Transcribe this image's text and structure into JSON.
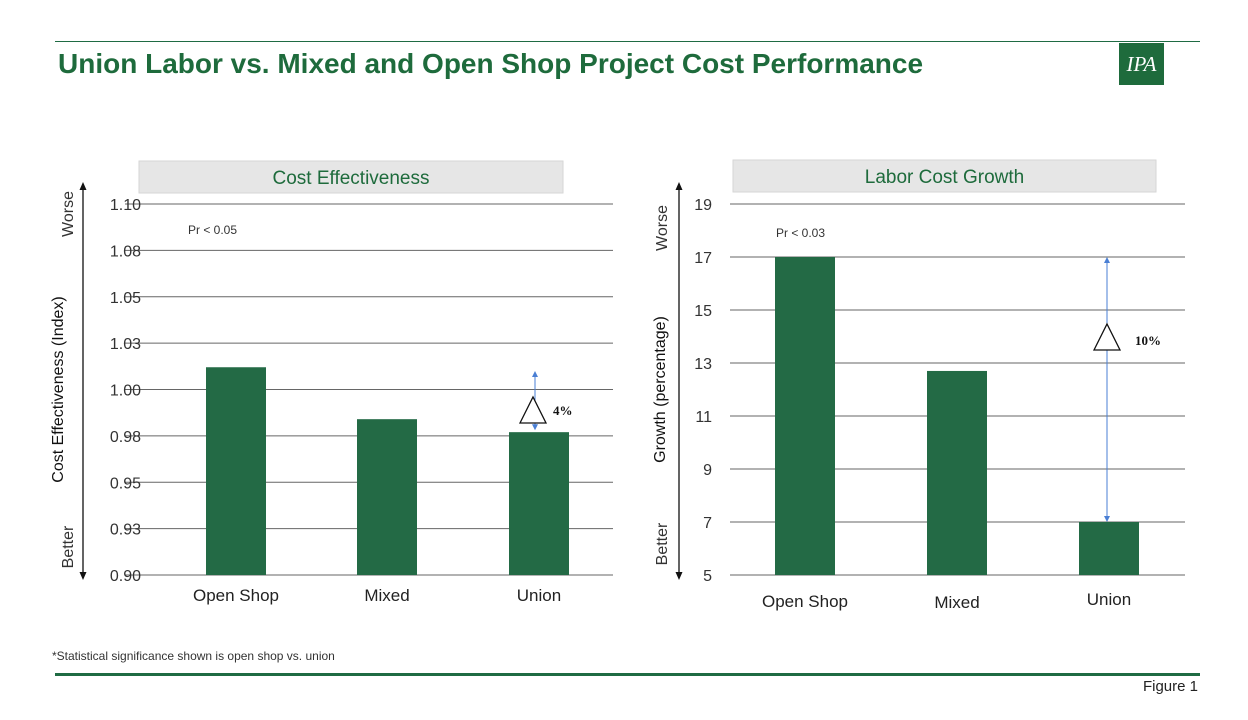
{
  "header": {
    "title": "Union Labor vs. Mixed and Open Shop Project Cost Performance",
    "logo_text": "IPA"
  },
  "colors": {
    "bar": "#236a45",
    "accent": "#1e6b3c",
    "arrow": "#4a7fd4",
    "grid": "#666666",
    "panel": "#e6e6e6"
  },
  "chart_data": [
    {
      "type": "bar",
      "title": "Cost Effectiveness",
      "ylabel": "Cost Effectiveness (Index)",
      "worse_label": "Worse",
      "better_label": "Better",
      "categories": [
        "Open Shop",
        "Mixed",
        "Union"
      ],
      "values": [
        1.012,
        0.984,
        0.977
      ],
      "ylim": [
        0.9,
        1.1
      ],
      "yticks": [
        0.9,
        0.925,
        0.95,
        0.975,
        1.0,
        1.025,
        1.05,
        1.075,
        1.1
      ],
      "ytick_labels": [
        "0.90",
        "0.93",
        "0.95",
        "0.98",
        "1.00",
        "1.03",
        "1.05",
        "1.08",
        "1.10"
      ],
      "significance": "Pr < 0.05",
      "delta_label": "4%",
      "delta_range": [
        1.01,
        0.978
      ]
    },
    {
      "type": "bar",
      "title": "Labor Cost Growth",
      "ylabel": "Growth (percentage)",
      "worse_label": "Worse",
      "better_label": "Better",
      "categories": [
        "Open Shop",
        "Mixed",
        "Union"
      ],
      "values": [
        17.0,
        12.7,
        7.0
      ],
      "ylim": [
        5,
        19
      ],
      "yticks": [
        5,
        7,
        9,
        11,
        13,
        15,
        17,
        19
      ],
      "ytick_labels": [
        "5",
        "7",
        "9",
        "11",
        "13",
        "15",
        "17",
        "19"
      ],
      "significance": "Pr < 0.03",
      "delta_label": "10%",
      "delta_range": [
        17,
        7
      ]
    }
  ],
  "footnote": "*Statistical significance shown is open shop vs. union",
  "figure_label": "Figure 1"
}
